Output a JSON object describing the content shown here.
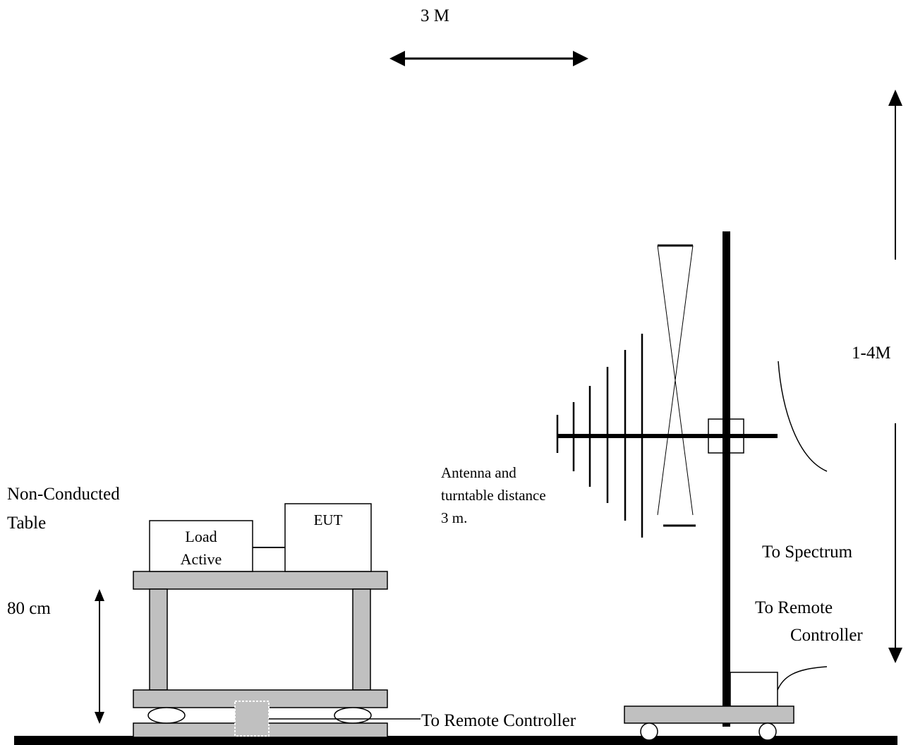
{
  "labels": {
    "distance_top": "3 M",
    "height_range": "1-4M",
    "table_name_line1": "Non-Conducted",
    "table_name_line2": "Table",
    "table_height": "80 cm",
    "load_line1": "Load",
    "load_line2": "Active",
    "eut": "EUT",
    "antenna_note_line1": "Antenna and",
    "antenna_note_line2": "turntable distance",
    "antenna_note_line3": "3 m.",
    "to_spectrum": "To Spectrum",
    "to_remote_line1": "To Remote",
    "to_remote_line2": "Controller",
    "to_remote_bottom": "To Remote Controller"
  },
  "colors": {
    "table_gray": "#c0c0c0",
    "stroke": "#000000",
    "background": "#ffffff"
  }
}
